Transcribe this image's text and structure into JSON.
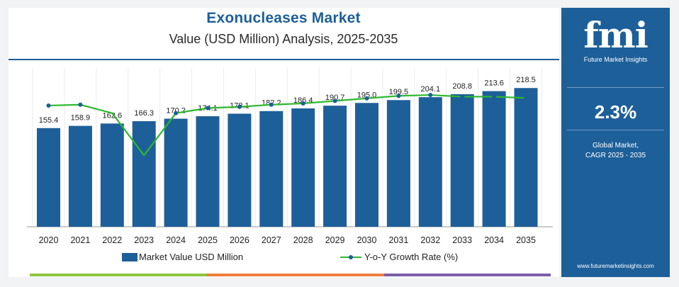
{
  "header": {
    "title": "Exonucleases Market",
    "subtitle": "Value (USD Million) Analysis, 2025-2035"
  },
  "legend": {
    "bar_label": "Market Value USD Million",
    "line_label": "Y-o-Y Growth Rate (%)"
  },
  "sidebar": {
    "logo_text": "fmi",
    "logo_subtitle": "Future Market Insights",
    "cagr_value": "2.3%",
    "cagr_label_line1": "Global Market,",
    "cagr_label_line2": "CAGR 2025 - 2035",
    "website": "www.futuremarketinsights.com"
  },
  "colors": {
    "bar": "#1d5f99",
    "line": "#2db82d",
    "marker": "#1d5f99",
    "accent_green": "#8cc63f",
    "accent_orange": "#f07f3c",
    "accent_purple": "#7b5ea7"
  },
  "chart_data": {
    "type": "bar",
    "title": "Exonucleases Market",
    "subtitle": "Value (USD Million) Analysis, 2025-2035",
    "categories": [
      "2020",
      "2021",
      "2022",
      "2023",
      "2024",
      "2025",
      "2026",
      "2027",
      "2028",
      "2029",
      "2030",
      "2031",
      "2032",
      "2033",
      "2034",
      "2035"
    ],
    "series": [
      {
        "name": "Market Value USD Million",
        "type": "bar",
        "values": [
          155.4,
          158.9,
          162.6,
          166.3,
          170.2,
          174.1,
          178.1,
          182.2,
          186.4,
          190.7,
          195.0,
          199.5,
          204.1,
          208.8,
          213.6,
          218.5
        ],
        "labels": [
          "155.4",
          "158.9",
          "162.6",
          "166.3",
          "170.2",
          "174.1",
          "178.1",
          "182.2",
          "186.4",
          "190.7",
          "195.0",
          "199.5",
          "204.1",
          "208.8",
          "213.6",
          "218.5"
        ]
      },
      {
        "name": "Y-o-Y Growth Rate (%)",
        "type": "line",
        "values": [
          2.28,
          2.3,
          2.1,
          1.1,
          2.1,
          2.22,
          2.25,
          2.3,
          2.33,
          2.39,
          2.45,
          2.51,
          2.53,
          2.49,
          2.49,
          2.46
        ]
      }
    ],
    "xlabel": "",
    "ylabel": "",
    "ylim": [
      0,
      250
    ],
    "y2lim": [
      0.5,
      2.9
    ],
    "grid": false,
    "legend_position": "bottom"
  }
}
